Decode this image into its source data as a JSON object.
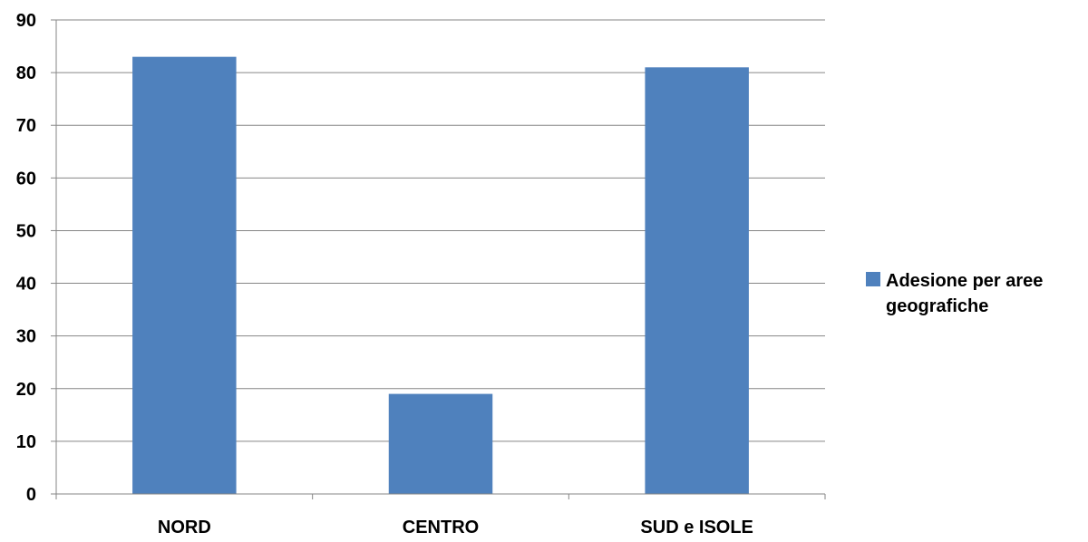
{
  "chart_data": {
    "type": "bar",
    "categories": [
      "NORD",
      "CENTRO",
      "SUD e ISOLE"
    ],
    "series": [
      {
        "name": "Adesione per aree geografiche",
        "values": [
          83,
          19,
          81
        ]
      }
    ],
    "ylim": [
      0,
      90
    ],
    "y_ticks": [
      0,
      10,
      20,
      30,
      40,
      50,
      60,
      70,
      80,
      90
    ],
    "grid": true,
    "legend_position": "right",
    "colors": {
      "bar": "#4F81BD",
      "grid": "#868686",
      "axis": "#868686"
    }
  }
}
